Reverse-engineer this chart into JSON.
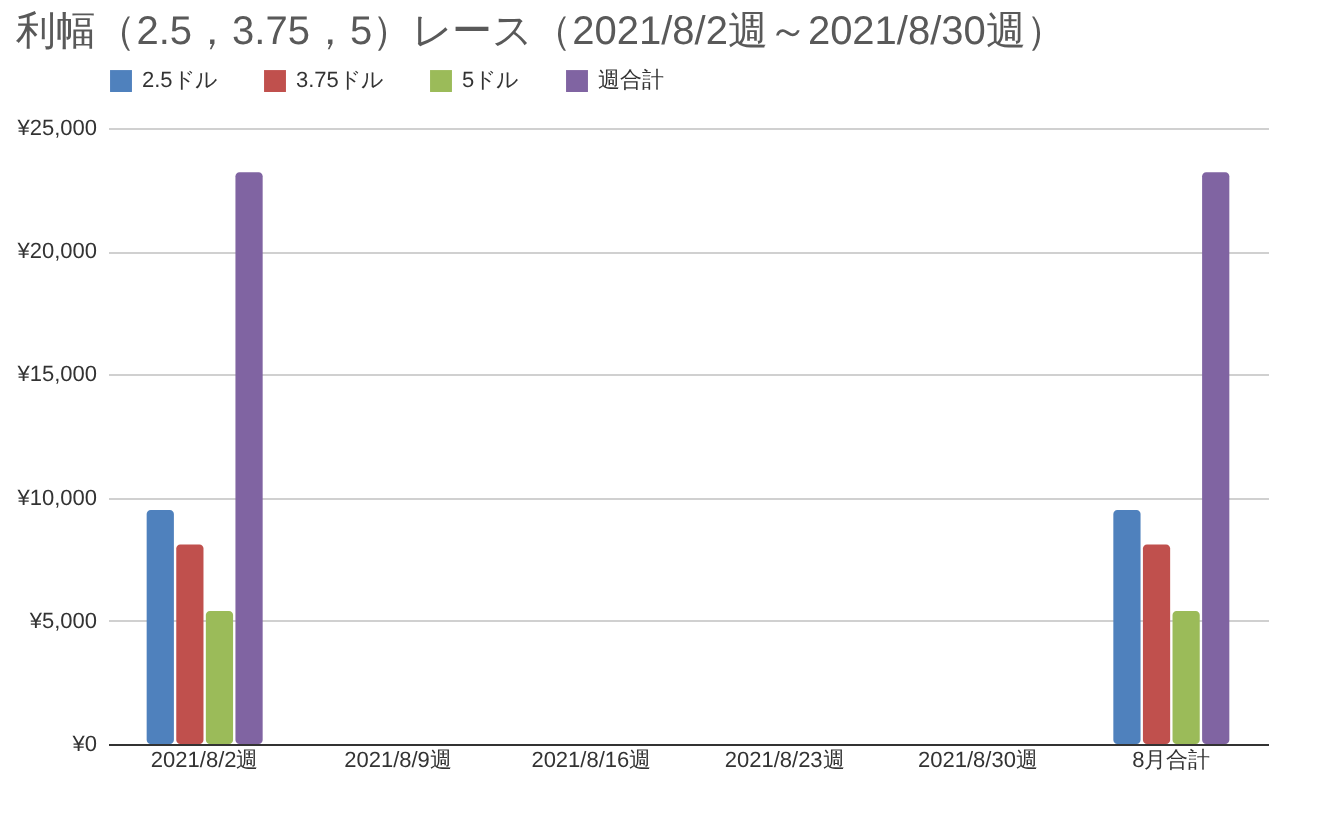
{
  "chart_data": {
    "type": "bar",
    "title": "利幅（2.5，3.75，5）レース（2021/8/2週～2021/8/30週）",
    "categories": [
      "2021/8/2週",
      "2021/8/9週",
      "2021/8/16週",
      "2021/8/23週",
      "2021/8/30週",
      "8月合計"
    ],
    "series": [
      {
        "name": "2.5ドル",
        "color": "#4f81bd",
        "values": [
          9500,
          0,
          0,
          0,
          0,
          9500
        ]
      },
      {
        "name": "3.75ドル",
        "color": "#c0504d",
        "values": [
          8100,
          0,
          0,
          0,
          0,
          8100
        ]
      },
      {
        "name": "5ドル",
        "color": "#9bbb59",
        "values": [
          5400,
          0,
          0,
          0,
          0,
          5400
        ]
      },
      {
        "name": "週合計",
        "color": "#8064a2",
        "values": [
          23200,
          0,
          0,
          0,
          0,
          23200
        ]
      }
    ],
    "ylim": [
      0,
      25000
    ],
    "yticks": [
      {
        "value": 0,
        "label": "¥0"
      },
      {
        "value": 5000,
        "label": "¥5,000"
      },
      {
        "value": 10000,
        "label": "¥10,000"
      },
      {
        "value": 15000,
        "label": "¥15,000"
      },
      {
        "value": 20000,
        "label": "¥20,000"
      },
      {
        "value": 25000,
        "label": "¥25,000"
      }
    ],
    "grid": "y",
    "legend": "top"
  }
}
